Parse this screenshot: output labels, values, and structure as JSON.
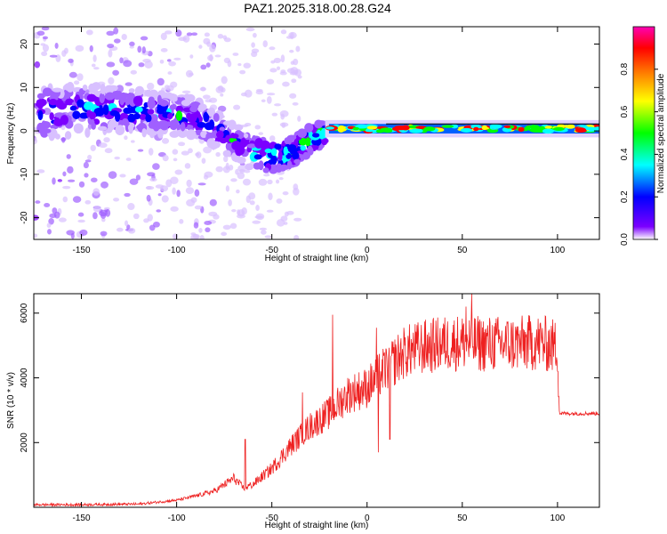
{
  "title": "PAZ1.2025.318.00.28.G24",
  "chart_data": [
    {
      "type": "heatmap",
      "name": "spectrogram",
      "xlabel": "Height of straight line (km)",
      "ylabel": "Frequency (Hz)",
      "xlim": [
        -175,
        122
      ],
      "ylim": [
        -25,
        24
      ],
      "xticks": [
        -150,
        -100,
        -50,
        0,
        50,
        100
      ],
      "yticks": [
        -20,
        -10,
        0,
        10,
        20
      ],
      "colorbar": {
        "label": "Normalized spectral amplitude",
        "range": [
          0,
          1
        ],
        "ticks": [
          0.0,
          0.2,
          0.4,
          0.6,
          0.8
        ],
        "colormap": [
          "#ffffff",
          "#7b00ff",
          "#0000ff",
          "#00ffff",
          "#00ff00",
          "#ffff00",
          "#ff7f00",
          "#ff0000",
          "#ff00b4"
        ]
      },
      "ridge": {
        "x": [
          -170,
          -150,
          -130,
          -110,
          -90,
          -75,
          -60,
          -50,
          -40,
          -30,
          -20,
          -10,
          0,
          5,
          20,
          50,
          80,
          100,
          122
        ],
        "freq": [
          4,
          5,
          5,
          4,
          3,
          -1,
          -5,
          -6,
          -5,
          -2,
          0,
          1,
          1.5,
          1,
          0.5,
          0.5,
          0.5,
          0.5,
          0.5
        ]
      }
    },
    {
      "type": "line",
      "name": "snr",
      "xlabel": "Height of straight line (km)",
      "ylabel": "SNR (10 * v/v)",
      "xlim": [
        -175,
        122
      ],
      "ylim": [
        0,
        6600
      ],
      "xticks": [
        -150,
        -100,
        -50,
        0,
        50,
        100
      ],
      "yticks": [
        2000,
        4000,
        6000
      ],
      "color": "#ee2020",
      "envelope": {
        "x": [
          -175,
          -150,
          -120,
          -100,
          -90,
          -80,
          -75,
          -70,
          -65,
          -60,
          -50,
          -40,
          -30,
          -20,
          -10,
          0,
          10,
          20,
          30,
          40,
          50,
          60,
          70,
          80,
          90,
          100,
          101,
          110,
          122
        ],
        "y": [
          80,
          80,
          100,
          220,
          350,
          500,
          700,
          900,
          600,
          700,
          1200,
          1900,
          2500,
          2900,
          3500,
          3700,
          4300,
          4800,
          4950,
          5050,
          5100,
          5050,
          5050,
          5050,
          5100,
          4950,
          2900,
          2900,
          2900
        ]
      },
      "spikes": [
        {
          "x": -64,
          "y": 2100
        },
        {
          "x": -18,
          "y": 5950
        },
        {
          "x": -34,
          "y": 3550
        },
        {
          "x": 5,
          "y": 5550
        },
        {
          "x": 55,
          "y": 6600
        },
        {
          "x": 52,
          "y": 6200
        },
        {
          "x": 6,
          "y": 1700
        },
        {
          "x": 12,
          "y": 2100
        }
      ]
    }
  ]
}
